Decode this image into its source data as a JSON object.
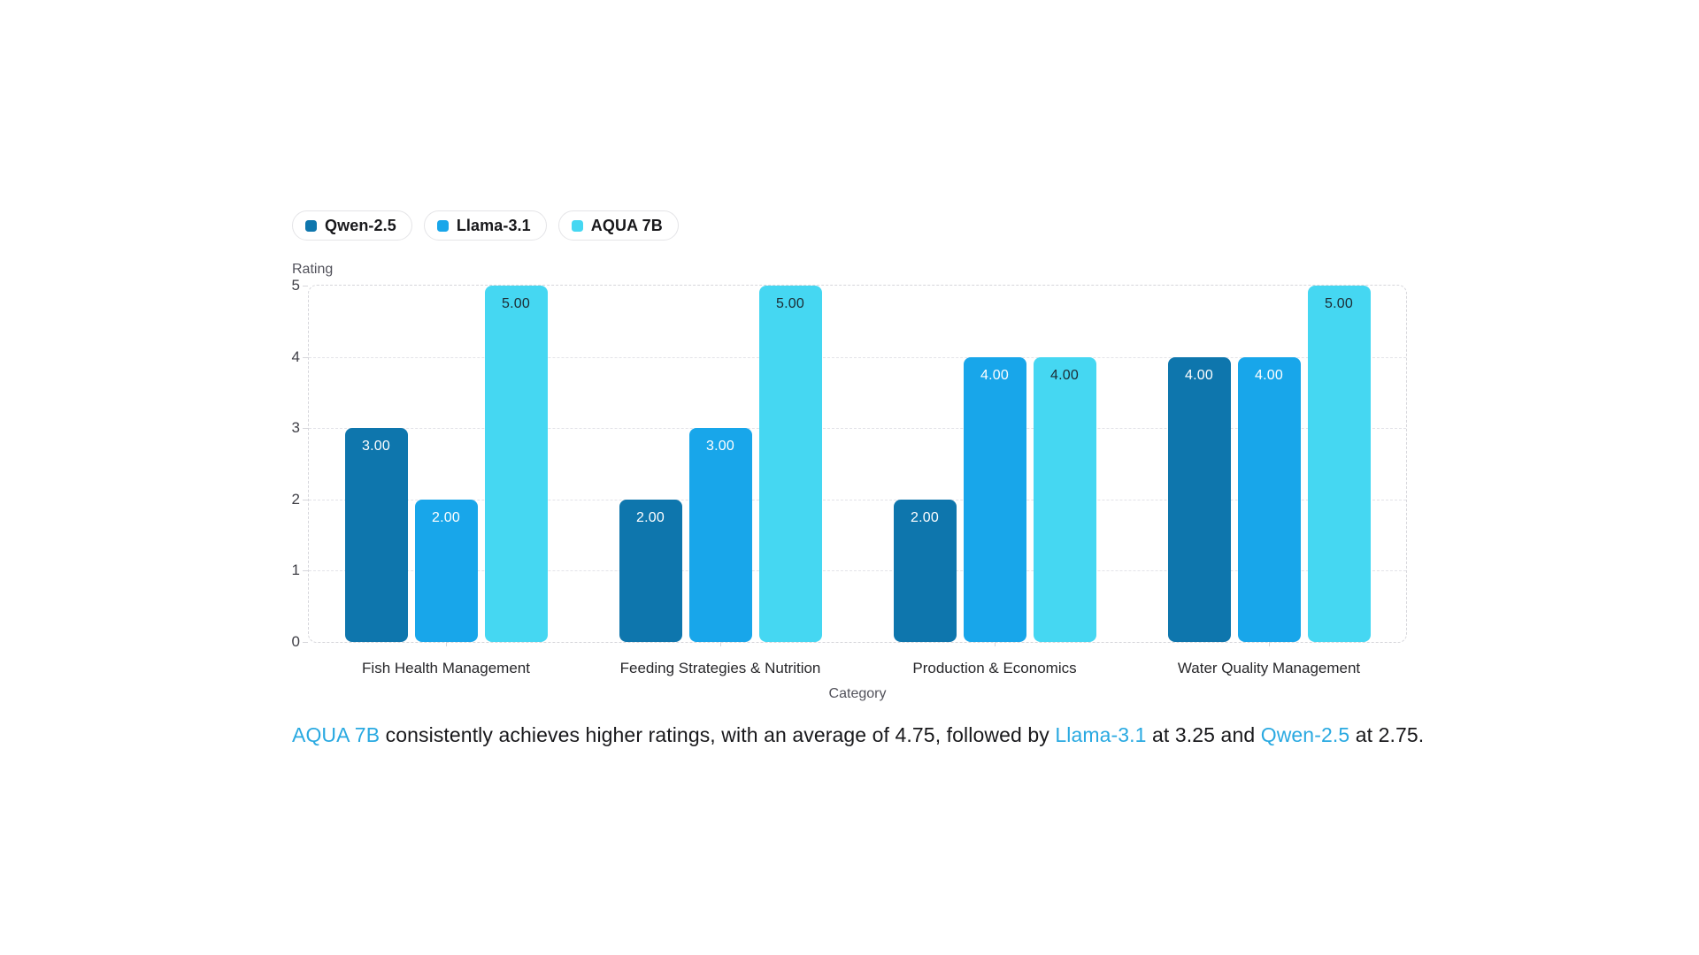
{
  "legend": {
    "items": [
      {
        "label": "Qwen-2.5"
      },
      {
        "label": "Llama-3.1"
      },
      {
        "label": "AQUA 7B"
      }
    ]
  },
  "chart_data": {
    "type": "bar",
    "categories": [
      "Fish Health Management",
      "Feeding Strategies & Nutrition",
      "Production & Economics",
      "Water Quality Management"
    ],
    "series": [
      {
        "name": "Qwen-2.5",
        "color": "#0E76AD",
        "value_label_color": "#ffffff",
        "values": [
          3,
          2,
          2,
          4
        ]
      },
      {
        "name": "Llama-3.1",
        "color": "#18A6EA",
        "value_label_color": "#ffffff",
        "values": [
          2,
          3,
          4,
          4
        ]
      },
      {
        "name": "AQUA 7B",
        "color": "#45D7F2",
        "value_label_color": "#1C2B33",
        "values": [
          5,
          5,
          4,
          5
        ]
      }
    ],
    "xlabel": "Category",
    "ylabel": "Rating",
    "ylim": [
      0,
      5
    ],
    "yticks": [
      0,
      1,
      2,
      3,
      4,
      5
    ],
    "value_label_decimals": 2,
    "grid": "horizontal-dashed",
    "legend_position": "top-left"
  },
  "caption": {
    "aqua": "AQUA 7B",
    "t1": " consistently achieves higher ratings, with an average of 4.75, followed by ",
    "llama": "Llama-3.1",
    "t2": " at 3.25 and ",
    "qwen": "Qwen-2.5",
    "t3": " at 2.75.",
    "accent_color": "#29A9E1"
  }
}
